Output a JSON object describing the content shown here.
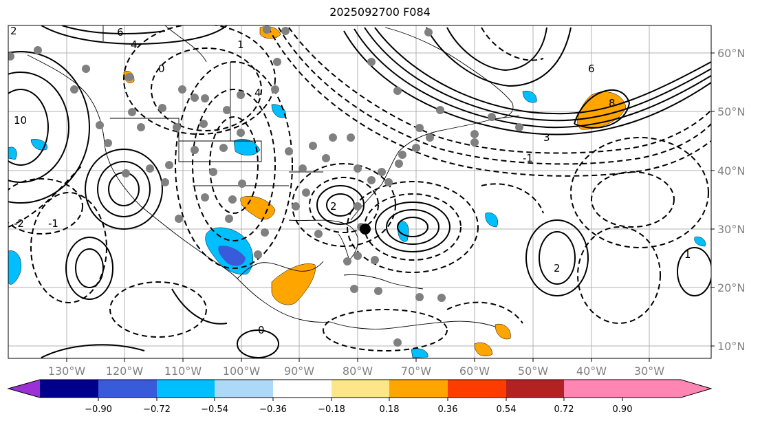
{
  "title": "2025092700 F084",
  "lon_labels": [
    "130°W",
    "120°W",
    "110°W",
    "100°W",
    "90°W",
    "80°W",
    "70°W",
    "60°W",
    "50°W",
    "40°W",
    "30°W"
  ],
  "lat_labels": [
    "60°N",
    "50°N",
    "40°N",
    "30°N",
    "20°N",
    "10°N"
  ],
  "colorbar": {
    "ticks": [
      "−0.90",
      "−0.72",
      "−0.54",
      "−0.36",
      "−0.18",
      "0.18",
      "0.36",
      "0.54",
      "0.72",
      "0.90"
    ],
    "colors": [
      "#9b30d6",
      "#00008b",
      "#3a5bd9",
      "#00bfff",
      "#add8f7",
      "#ffffff",
      "#fde68a",
      "#ffa500",
      "#ff3c00",
      "#b22222",
      "#ff85b3"
    ]
  },
  "contour_labels": [
    "6",
    "4",
    "2",
    "0",
    "-2",
    "-1",
    "1",
    "3",
    "8",
    "10",
    "2",
    "4",
    "6",
    "-1",
    "0",
    "2",
    "1"
  ],
  "colors": {
    "grid": "#b0b0b0",
    "contour": "#000000",
    "dots": "#808080",
    "marker": "#000000"
  }
}
